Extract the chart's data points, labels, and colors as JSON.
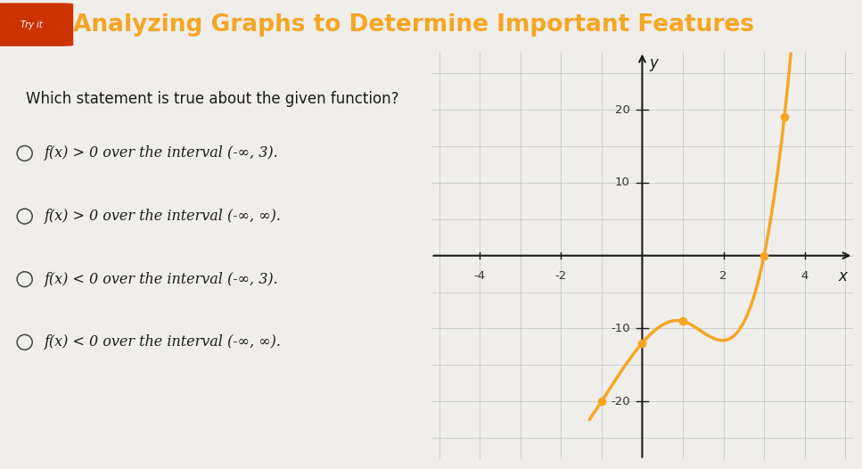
{
  "title": "Analyzing Graphs to Determine Important Features",
  "subtitle": "Try it",
  "question": "Which statement is true about the given function?",
  "choices": [
    "f(x) > 0 over the interval (-∞, 3).",
    "f(x) > 0 over the interval (-∞, ∞).",
    "f(x) < 0 over the interval (-∞, 3).",
    "f(x) < 0 over the interval (-∞, ∞)."
  ],
  "dot_points": [
    [
      -1,
      -20
    ],
    [
      0,
      -12
    ],
    [
      1,
      -9
    ],
    [
      3,
      0
    ],
    [
      3.5,
      19
    ]
  ],
  "x_ticks": [
    -4,
    -2,
    2,
    4
  ],
  "y_ticks": [
    -20,
    -10,
    10,
    20
  ],
  "xlim": [
    -5.2,
    5.2
  ],
  "ylim": [
    -28,
    28
  ],
  "curve_color": "#F5A623",
  "dot_color": "#F5A623",
  "axis_color": "#1a1a1a",
  "grid_color": "#c8c8c8",
  "background_color": "#f0eeeb",
  "graph_bg": "#ece9e4",
  "title_color": "#F5A623",
  "text_color": "#1a1a1a",
  "header_bg": "#ffffff",
  "title_fontsize": 19,
  "question_fontsize": 12,
  "choice_fontsize": 11.5,
  "curve_x_start": -1.3,
  "curve_x_end": 4.55
}
